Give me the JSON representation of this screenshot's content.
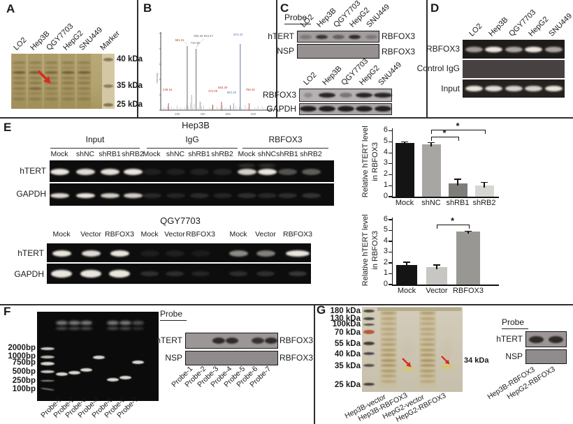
{
  "figure_bg": "#ffffff",
  "accent_colors": {
    "arrow_red": "#d92b1a",
    "axis_black": "#111111"
  },
  "panels": {
    "A": {
      "label": "A",
      "lane_labels": [
        "LO2",
        "Hep3B",
        "QGY7703",
        "HepG2",
        "SNU449",
        "Marker"
      ],
      "marker_labels": [
        "40 kDa",
        "35 kDa",
        "25 kDa"
      ],
      "arrow_icon": "red-arrow-down-right",
      "colors": {
        "gel": "#b5a572",
        "marker_lane": "#d4c8a4",
        "band": "#584828"
      }
    },
    "B": {
      "label": "B",
      "spectrum": {
        "type": "ms2-spectrum",
        "ylabel": "Intensity",
        "labels_approximate": true,
        "annotations": [
          {
            "text": "581.31",
            "color": "#c0392b",
            "fx": 0.13,
            "fy": 0.09
          },
          {
            "text": "925.46  943.47",
            "color": "#666666",
            "fx": 0.3,
            "fy": 0.03
          },
          {
            "text": "710.38",
            "color": "#666666",
            "fx": 0.27,
            "fy": 0.13
          },
          {
            "text": "874.42",
            "color": "#5b6fb5",
            "fx": 0.66,
            "fy": 0.01
          },
          {
            "text": "249.16",
            "color": "#c0392b",
            "fx": 0.02,
            "fy": 0.8
          },
          {
            "text": "472.25",
            "color": "#c0392b",
            "fx": 0.43,
            "fy": 0.82
          },
          {
            "text": "563.29",
            "color": "#c0392b",
            "fx": 0.52,
            "fy": 0.77
          },
          {
            "text": "652.33",
            "color": "#5b6fb5",
            "fx": 0.6,
            "fy": 0.84
          },
          {
            "text": "766.40",
            "color": "#c0392b",
            "fx": 0.77,
            "fy": 0.8
          }
        ],
        "xticks": [
          "200",
          "400",
          "600",
          "800"
        ],
        "peaks": [
          {
            "x": 0.07,
            "h": 0.1,
            "color": "#c0392b"
          },
          {
            "x": 0.24,
            "h": 0.92,
            "color": "#8a8a8a"
          },
          {
            "x": 0.32,
            "h": 0.88,
            "color": "#8a8a8a"
          },
          {
            "x": 0.28,
            "h": 0.22,
            "color": "#aaaaaa"
          },
          {
            "x": 0.36,
            "h": 0.12,
            "color": "#aaaaaa"
          },
          {
            "x": 0.47,
            "h": 0.08,
            "color": "#c0392b"
          },
          {
            "x": 0.55,
            "h": 0.12,
            "color": "#c0392b"
          },
          {
            "x": 0.63,
            "h": 0.07,
            "color": "#5b6fb5"
          },
          {
            "x": 0.66,
            "h": 0.1,
            "color": "#999999"
          },
          {
            "x": 0.72,
            "h": 0.95,
            "color": "#8a93c4"
          },
          {
            "x": 0.8,
            "h": 0.1,
            "color": "#c0392b"
          }
        ]
      }
    },
    "C": {
      "label": "C",
      "probe_label": "Probe",
      "lane_labels": [
        "LO2",
        "Hep3B",
        "QGY7703",
        "HepG2",
        "SNU449"
      ],
      "probe_blots": [
        {
          "left": "hTERT",
          "right": "RBFOX3",
          "band_intensities": [
            0.3,
            0.85,
            0.5,
            1,
            0.3
          ]
        },
        {
          "left": "NSP",
          "right": "RBFOX3",
          "band_intensities": [
            0,
            0,
            0,
            0,
            0
          ]
        }
      ],
      "wb_blots": [
        {
          "left": "RBFOX3",
          "band_intensities": [
            0.25,
            1,
            0.4,
            0.95,
            1
          ]
        },
        {
          "left": "GAPDH",
          "band_intensities": [
            1,
            0.95,
            1,
            0.95,
            0.9
          ]
        }
      ]
    },
    "D": {
      "label": "D",
      "lane_labels": [
        "LO2",
        "Hep3B",
        "QGY7703",
        "HepG2",
        "SNU449"
      ],
      "rows": [
        {
          "left": "RBFOX3",
          "band_intensities": [
            0.6,
            1,
            0.65,
            0.95,
            0.65
          ]
        },
        {
          "left": "Control IgG",
          "band_intensities": [
            0,
            0,
            0,
            0,
            0
          ]
        },
        {
          "left": "Input",
          "band_intensities": [
            1,
            0.9,
            0.85,
            0.85,
            1
          ]
        }
      ]
    },
    "E": {
      "label": "E",
      "hep3b": {
        "title": "Hep3B",
        "group_labels": [
          "Input",
          "IgG",
          "RBFOX3"
        ],
        "lane_labels": [
          "Mock",
          "shNC",
          "shRB1",
          "shRB2"
        ],
        "rows": [
          {
            "left": "hTERT",
            "band_intensities": [
              [
                0.95,
                0.9,
                0.92,
                1
              ],
              [
                0.08,
                0.08,
                0.09,
                0.1
              ],
              [
                0.85,
                1,
                0.3,
                0.35
              ]
            ]
          },
          {
            "left": "GAPDH",
            "band_intensities": [
              [
                0.9,
                1,
                0.85,
                0.85
              ],
              [
                0.12,
                0.1,
                0.13,
                0.1
              ],
              [
                0.15,
                0.12,
                0.14,
                0.17
              ]
            ]
          }
        ]
      },
      "qgy7703": {
        "title": "QGY7703",
        "lane_labels": [
          "Mock",
          "Vector",
          "RBFOX3"
        ],
        "rows": [
          {
            "left": "hTERT",
            "band_intensities": [
              [
                1,
                0.9,
                0.95
              ],
              [
                0.07,
                0.08,
                0.06
              ],
              [
                0.55,
                0.5,
                1
              ]
            ]
          },
          {
            "left": "GAPDH",
            "band_intensities": [
              [
                1,
                1,
                1
              ],
              [
                0.15,
                0.14,
                0.1
              ],
              [
                0.14,
                0.15,
                0.18
              ]
            ]
          }
        ]
      }
    },
    "F": {
      "label": "F",
      "ladder_labels": [
        "2000bp",
        "1000bp",
        "750bp",
        "500bp",
        "250bp",
        "100bp"
      ],
      "lane_labels": [
        "Probe-1",
        "Probe-2",
        "Probe-3",
        "Probe-4",
        "Probe-5",
        "Probe-6",
        "Probe-7"
      ],
      "band_sizes_bp": [
        430,
        500,
        560,
        980,
        280,
        330,
        800
      ],
      "blot": {
        "probe_label": "Probe",
        "rows": [
          {
            "left": "hTERT",
            "right": "RBFOX3",
            "band_intensities": [
              0,
              0,
              1,
              0.9,
              0,
              0.85,
              0.95
            ]
          },
          {
            "left": "NSP",
            "right": "RBFOX3",
            "band_intensities": [
              0,
              0,
              0,
              0,
              0,
              0,
              0
            ]
          }
        ]
      }
    },
    "G": {
      "label": "G",
      "ladder_labels": [
        "180 kDa",
        "130 kDa",
        "100kDa",
        "70 kDa",
        "55 kDa",
        "40 kDa",
        "35 kDa",
        "25 kDa"
      ],
      "lane_labels": [
        "Hep3B-vector",
        "Hep3B-RBFOX3",
        "HepG2-vector",
        "HepG2-RBFOX3"
      ],
      "annotation": "34 kDa",
      "arrow_icon": "red-arrow-down-right",
      "blot": {
        "probe_label": "Probe",
        "rows": [
          {
            "left": "hTERT",
            "band_intensities": [
              1,
              1
            ]
          },
          {
            "left": "NSP",
            "band_intensities": [
              0,
              0
            ]
          }
        ],
        "lane_labels": [
          "Hep3B-RBFOX3",
          "HepG2-RBFOX3"
        ]
      }
    }
  },
  "chart_data": [
    {
      "type": "bar",
      "cell_line": "Hep3B",
      "ylabel": "Relative hTERT level in RBFOX3",
      "ylabel_lines": [
        "Relative hTERT level",
        "in RBFOX3"
      ],
      "categories": [
        "Mock",
        "shNC",
        "shRB1",
        "shRB2"
      ],
      "values": [
        4.9,
        4.8,
        1.2,
        1.0
      ],
      "errors": [
        0.15,
        0.2,
        0.45,
        0.35
      ],
      "bar_colors": [
        "#141414",
        "#a8a6a3",
        "#7f7d7a",
        "#d8d6d2"
      ],
      "ylim": [
        0,
        6
      ],
      "yticks": [
        0,
        1,
        2,
        3,
        4,
        5,
        6
      ],
      "grid": false,
      "significance": [
        {
          "from": 1,
          "to": 2,
          "label": "*"
        },
        {
          "from": 1,
          "to": 3,
          "label": "*"
        }
      ]
    },
    {
      "type": "bar",
      "cell_line": "QGY7703",
      "ylabel": "Relative hTERT level in RBFOX3",
      "ylabel_lines": [
        "Relative hTERT level",
        "in RBFOX3"
      ],
      "categories": [
        "Mock",
        "Vector",
        "RBFOX3"
      ],
      "values": [
        1.8,
        1.6,
        4.9
      ],
      "errors": [
        0.3,
        0.25,
        0.1
      ],
      "bar_colors": [
        "#141414",
        "#c8c6c2",
        "#999793"
      ],
      "ylim": [
        0,
        6
      ],
      "yticks": [
        0,
        1,
        2,
        3,
        4,
        5,
        6
      ],
      "grid": false,
      "significance": [
        {
          "from": 1,
          "to": 2,
          "label": "*"
        }
      ]
    }
  ]
}
